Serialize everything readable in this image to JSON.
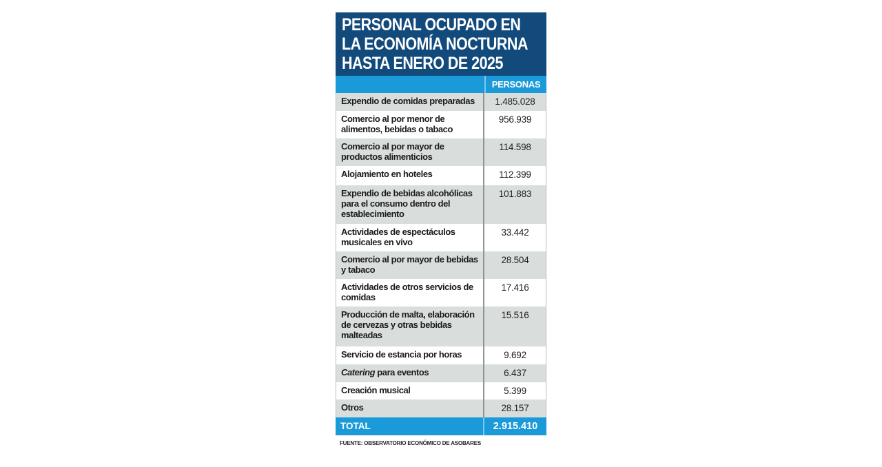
{
  "chart_data": {
    "type": "table",
    "title": "PERSONAL OCUPADO EN LA ECONOMÍA NOCTURNA HASTA ENERO DE 2025",
    "title_lines": [
      "PERSONAL OCUPADO EN",
      "LA ECONOMÍA NOCTURNA",
      "HASTA ENERO DE 2025"
    ],
    "column_header": "PERSONAS",
    "rows": [
      {
        "label": "Expendio de comidas preparadas",
        "value": "1.485.028"
      },
      {
        "label": "Comercio al por menor de alimentos, bebidas o tabaco",
        "value": "956.939"
      },
      {
        "label": "Comercio al por mayor de productos alimenticios",
        "value": "114.598"
      },
      {
        "label": "Alojamiento en hoteles",
        "value": "112.399"
      },
      {
        "label": "Expendio de bebidas alcohólicas para el consumo dentro del establecimiento",
        "value": "101.883"
      },
      {
        "label": "Actividades de espectáculos musicales en vivo",
        "value": "33.442"
      },
      {
        "label": "Comercio al por mayor de bebidas y tabaco",
        "value": "28.504"
      },
      {
        "label": "Actividades de otros servicios de comidas",
        "value": "17.416"
      },
      {
        "label": "Producción de malta, elaboración de cervezas y otras bebidas malteadas",
        "value": "15.516"
      },
      {
        "label": "Servicio de estancia por horas",
        "value": "9.692"
      },
      {
        "label_italic": "Catering",
        "label": " para eventos",
        "value": "6.437"
      },
      {
        "label": "Creación musical",
        "value": "5.399"
      },
      {
        "label": "Otros",
        "value": "28.157"
      }
    ],
    "total": {
      "label": "TOTAL",
      "value": "2.915.410"
    },
    "source": "FUENTE: OBSERVATORIO ECONÓMICO DE ASOBARES",
    "colors": {
      "title_bg": "#134a7c",
      "header_bg": "#1a9ad8",
      "row_alt": "#d9dedd"
    }
  }
}
